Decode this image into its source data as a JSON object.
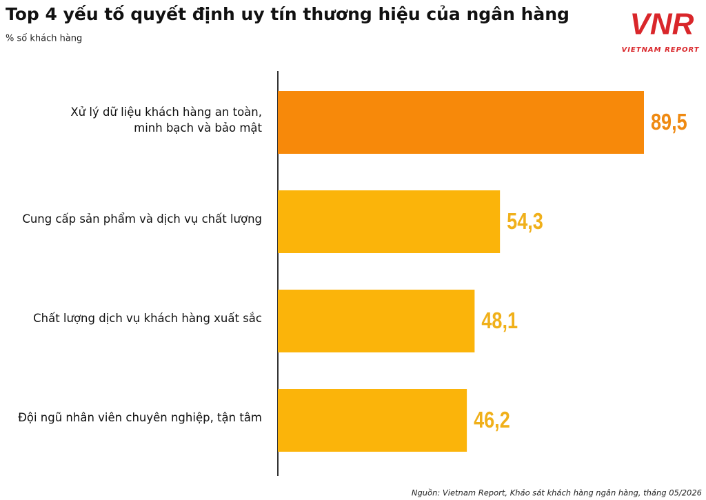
{
  "chart_data": {
    "type": "hbar",
    "title": "Top 4 yếu tố quyết định uy tín thương hiệu của ngân hàng",
    "subtitle": "% số khách hàng",
    "source": "Nguồn: Vietnam Report, Khảo sát khách hàng ngân hàng, tháng 05/2026",
    "logo": {
      "mark": "VNR",
      "text": "VIETNAM REPORT"
    },
    "categories": [
      "Xử lý dữ liệu khách hàng an toàn,\nminh bạch và bảo mật",
      "Cung cấp sản phẩm và dịch vụ chất lượng",
      "Chất lượng dịch vụ khách hàng xuất sắc",
      "Đội ngũ nhân viên chuyên nghiệp, tận tâm"
    ],
    "values": [
      89.5,
      54.3,
      48.1,
      46.2
    ],
    "value_labels": [
      "89,5",
      "54,3",
      "48,1",
      "46,2"
    ],
    "colors": [
      "#f7890a",
      "#fbb40a",
      "#fbb40a",
      "#fbb40a"
    ],
    "label_colors": [
      "#ef8a12",
      "#f0b01a",
      "#f0b01a",
      "#f0b01a"
    ]
  }
}
